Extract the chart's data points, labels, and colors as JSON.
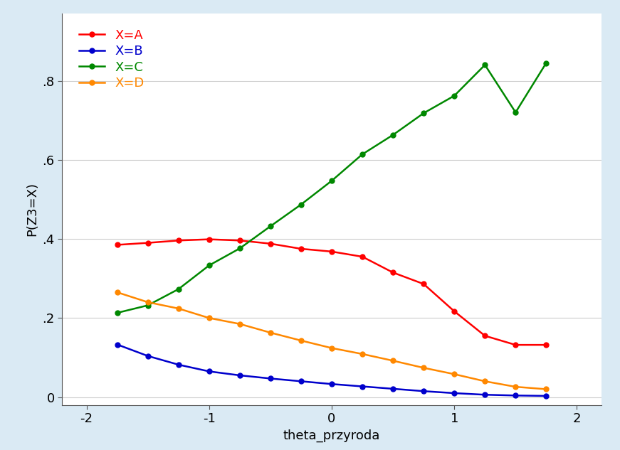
{
  "title": "",
  "xlabel": "theta_przyroda",
  "ylabel": "P(Z3=X)",
  "xlim": [
    -2.2,
    2.2
  ],
  "ylim": [
    -0.02,
    0.97
  ],
  "xticks": [
    -2,
    -1,
    0,
    1,
    2
  ],
  "yticks": [
    0,
    0.2,
    0.4,
    0.6,
    0.8
  ],
  "ytick_labels": [
    "0",
    ".2",
    ".4",
    ".6",
    ".8"
  ],
  "background_color": "#daeaf4",
  "plot_background_color": "#ffffff",
  "legend_labels": [
    "X=A",
    "X=B",
    "X=C",
    "X=D"
  ],
  "legend_colors": [
    "#ff0000",
    "#0000cc",
    "#008800",
    "#ff8800"
  ],
  "series": {
    "A": {
      "color": "#ff0000",
      "x": [
        -1.75,
        -1.5,
        -1.25,
        -1.0,
        -0.75,
        -0.5,
        -0.25,
        0.0,
        0.25,
        0.5,
        0.75,
        1.0,
        1.25,
        1.5,
        1.75
      ],
      "y": [
        0.385,
        0.39,
        0.396,
        0.399,
        0.396,
        0.388,
        0.375,
        0.368,
        0.355,
        0.315,
        0.286,
        0.217,
        0.155,
        0.132,
        0.132
      ]
    },
    "B": {
      "color": "#0000cc",
      "x": [
        -1.75,
        -1.5,
        -1.25,
        -1.0,
        -0.75,
        -0.5,
        -0.25,
        0.0,
        0.25,
        0.5,
        0.75,
        1.0,
        1.25,
        1.5,
        1.75
      ],
      "y": [
        0.133,
        0.104,
        0.082,
        0.065,
        0.055,
        0.047,
        0.04,
        0.033,
        0.027,
        0.021,
        0.015,
        0.01,
        0.006,
        0.004,
        0.003
      ]
    },
    "C": {
      "color": "#008800",
      "x": [
        -1.75,
        -1.5,
        -1.25,
        -1.0,
        -0.75,
        -0.5,
        -0.25,
        0.0,
        0.25,
        0.5,
        0.75,
        1.0,
        1.25,
        1.5,
        1.75
      ],
      "y": [
        0.213,
        0.232,
        0.273,
        0.333,
        0.376,
        0.432,
        0.487,
        0.547,
        0.614,
        0.663,
        0.718,
        0.762,
        0.84,
        0.72,
        0.845
      ]
    },
    "D": {
      "color": "#ff8800",
      "x": [
        -1.75,
        -1.5,
        -1.25,
        -1.0,
        -0.75,
        -0.5,
        -0.25,
        0.0,
        0.25,
        0.5,
        0.75,
        1.0,
        1.25,
        1.5,
        1.75
      ],
      "y": [
        0.265,
        0.24,
        0.224,
        0.2,
        0.185,
        0.163,
        0.143,
        0.124,
        0.109,
        0.092,
        0.074,
        0.058,
        0.04,
        0.026,
        0.02
      ]
    }
  },
  "figwidth": 8.71,
  "figheight": 6.33,
  "dpi": 100
}
